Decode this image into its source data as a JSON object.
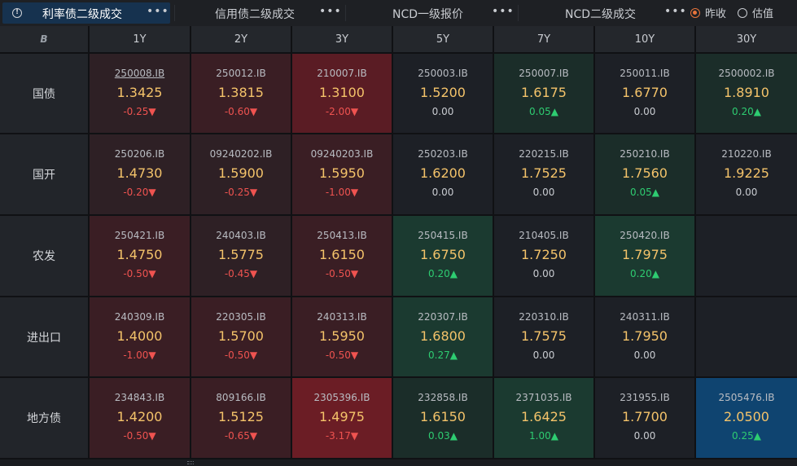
{
  "tabs": [
    {
      "label": "利率债二级成交",
      "active": true
    },
    {
      "label": "信用债二级成交",
      "active": false
    },
    {
      "label": "NCD一级报价",
      "active": false
    },
    {
      "label": "NCD二级成交",
      "active": false
    }
  ],
  "more_glyph": "•••",
  "info_glyph": "!",
  "price_mode": {
    "options": [
      "昨收",
      "估值"
    ],
    "selected": "昨收"
  },
  "corner_glyph": "B",
  "tenors": [
    "1Y",
    "2Y",
    "3Y",
    "5Y",
    "7Y",
    "10Y",
    "30Y"
  ],
  "rows": [
    {
      "label": "国债",
      "cells": [
        {
          "code": "250008.IB",
          "yield": "1.3425",
          "change": "-0.25",
          "dir": "down",
          "shade": "r1",
          "underline": true
        },
        {
          "code": "250012.IB",
          "yield": "1.3815",
          "change": "-0.60",
          "dir": "down",
          "shade": "r2"
        },
        {
          "code": "210007.IB",
          "yield": "1.3100",
          "change": "-2.00",
          "dir": "down",
          "shade": "r3"
        },
        {
          "code": "250003.IB",
          "yield": "1.5200",
          "change": "0.00",
          "dir": "flat",
          "shade": "neutral"
        },
        {
          "code": "250007.IB",
          "yield": "1.6175",
          "change": "0.05",
          "dir": "up",
          "shade": "g1"
        },
        {
          "code": "250011.IB",
          "yield": "1.6770",
          "change": "0.00",
          "dir": "flat",
          "shade": "neutral"
        },
        {
          "code": "2500002.IB",
          "yield": "1.8910",
          "change": "0.20",
          "dir": "up",
          "shade": "g1"
        }
      ]
    },
    {
      "label": "国开",
      "cells": [
        {
          "code": "250206.IB",
          "yield": "1.4730",
          "change": "-0.20",
          "dir": "down",
          "shade": "r1"
        },
        {
          "code": "09240202.IB",
          "yield": "1.5900",
          "change": "-0.25",
          "dir": "down",
          "shade": "r1"
        },
        {
          "code": "09240203.IB",
          "yield": "1.5950",
          "change": "-1.00",
          "dir": "down",
          "shade": "r2"
        },
        {
          "code": "250203.IB",
          "yield": "1.6200",
          "change": "0.00",
          "dir": "flat",
          "shade": "neutral"
        },
        {
          "code": "220215.IB",
          "yield": "1.7525",
          "change": "0.00",
          "dir": "flat",
          "shade": "neutral"
        },
        {
          "code": "250210.IB",
          "yield": "1.7560",
          "change": "0.05",
          "dir": "up",
          "shade": "g1"
        },
        {
          "code": "210220.IB",
          "yield": "1.9225",
          "change": "0.00",
          "dir": "flat",
          "shade": "neutral"
        }
      ]
    },
    {
      "label": "农发",
      "cells": [
        {
          "code": "250421.IB",
          "yield": "1.4750",
          "change": "-0.50",
          "dir": "down",
          "shade": "r2"
        },
        {
          "code": "240403.IB",
          "yield": "1.5775",
          "change": "-0.45",
          "dir": "down",
          "shade": "r1"
        },
        {
          "code": "250413.IB",
          "yield": "1.6150",
          "change": "-0.50",
          "dir": "down",
          "shade": "r2"
        },
        {
          "code": "250415.IB",
          "yield": "1.6750",
          "change": "0.20",
          "dir": "up",
          "shade": "g2"
        },
        {
          "code": "210405.IB",
          "yield": "1.7250",
          "change": "0.00",
          "dir": "flat",
          "shade": "neutral"
        },
        {
          "code": "250420.IB",
          "yield": "1.7975",
          "change": "0.20",
          "dir": "up",
          "shade": "g2"
        },
        null
      ]
    },
    {
      "label": "进出口",
      "cells": [
        {
          "code": "240309.IB",
          "yield": "1.4000",
          "change": "-1.00",
          "dir": "down",
          "shade": "r2"
        },
        {
          "code": "220305.IB",
          "yield": "1.5700",
          "change": "-0.50",
          "dir": "down",
          "shade": "r2"
        },
        {
          "code": "240313.IB",
          "yield": "1.5950",
          "change": "-0.50",
          "dir": "down",
          "shade": "r2"
        },
        {
          "code": "220307.IB",
          "yield": "1.6800",
          "change": "0.27",
          "dir": "up",
          "shade": "g2"
        },
        {
          "code": "220310.IB",
          "yield": "1.7575",
          "change": "0.00",
          "dir": "flat",
          "shade": "neutral"
        },
        {
          "code": "240311.IB",
          "yield": "1.7950",
          "change": "0.00",
          "dir": "flat",
          "shade": "neutral"
        },
        null
      ]
    },
    {
      "label": "地方债",
      "cells": [
        {
          "code": "234843.IB",
          "yield": "1.4200",
          "change": "-0.50",
          "dir": "down",
          "shade": "r2"
        },
        {
          "code": "809166.IB",
          "yield": "1.5125",
          "change": "-0.65",
          "dir": "down",
          "shade": "r2"
        },
        {
          "code": "2305396.IB",
          "yield": "1.4975",
          "change": "-3.17",
          "dir": "down",
          "shade": "r4"
        },
        {
          "code": "232858.IB",
          "yield": "1.6150",
          "change": "0.03",
          "dir": "up",
          "shade": "g1"
        },
        {
          "code": "2371035.IB",
          "yield": "1.6425",
          "change": "1.00",
          "dir": "up",
          "shade": "g2"
        },
        {
          "code": "231955.IB",
          "yield": "1.7700",
          "change": "0.00",
          "dir": "flat",
          "shade": "neutral"
        },
        {
          "code": "2505476.IB",
          "yield": "2.0500",
          "change": "0.25",
          "dir": "up",
          "shade": "b1"
        }
      ]
    }
  ],
  "arrows": {
    "down": "▼",
    "up": "▲"
  }
}
